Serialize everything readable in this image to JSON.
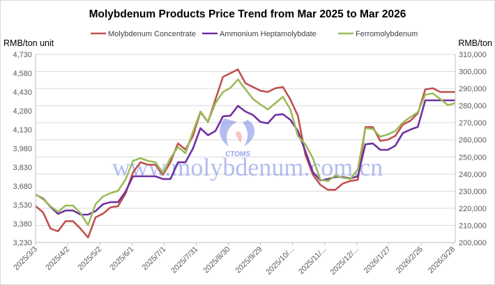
{
  "chart_data": {
    "type": "line",
    "title": "Molybdenum Products Price Trend from Mar 2025 to Mar 2026",
    "ylabel_left": "RMB/ton unit",
    "ylabel_right": "RMB/ton",
    "ylim_left": [
      3230,
      4730
    ],
    "ylim_right": [
      200000,
      310000
    ],
    "yticks_left": [
      "4,730",
      "4,580",
      "4,430",
      "4,280",
      "4,130",
      "3,980",
      "3,830",
      "3,680",
      "3,530",
      "3,380",
      "3,230"
    ],
    "yticks_right": [
      "310,000",
      "300,000",
      "290,000",
      "280,000",
      "270,000",
      "260,000",
      "250,000",
      "240,000",
      "230,000",
      "220,000",
      "210,000",
      "200,000"
    ],
    "xticks": [
      "2025/3/3",
      "2025/4/2",
      "2025/5/2",
      "2025/6/1",
      "2025/7/1",
      "2025/7/31",
      "2025/8/30",
      "2025/9/29",
      "2025/10/...",
      "2025/11/...",
      "2025/12/...",
      "2026/1/27",
      "2026/2/26",
      "2026/3/28"
    ],
    "grid": true,
    "legend": "top",
    "x": [
      "2025-03-03",
      "2025-03-10",
      "2025-03-17",
      "2025-03-24",
      "2025-03-31",
      "2025-04-07",
      "2025-04-14",
      "2025-04-21",
      "2025-04-28",
      "2025-05-05",
      "2025-05-12",
      "2025-05-19",
      "2025-05-26",
      "2025-06-02",
      "2025-06-09",
      "2025-06-16",
      "2025-06-23",
      "2025-06-30",
      "2025-07-07",
      "2025-07-14",
      "2025-07-21",
      "2025-07-28",
      "2025-08-04",
      "2025-08-11",
      "2025-08-18",
      "2025-08-25",
      "2025-09-01",
      "2025-09-08",
      "2025-09-15",
      "2025-09-22",
      "2025-09-29",
      "2025-10-06",
      "2025-10-13",
      "2025-10-20",
      "2025-10-27",
      "2025-11-03",
      "2025-11-10",
      "2025-11-17",
      "2025-11-24",
      "2025-12-01",
      "2025-12-08",
      "2025-12-15",
      "2025-12-22",
      "2025-12-29",
      "2026-01-05",
      "2026-01-12",
      "2026-01-19",
      "2026-01-26",
      "2026-02-02",
      "2026-02-09",
      "2026-02-16",
      "2026-02-23",
      "2026-03-02",
      "2026-03-09",
      "2026-03-16",
      "2026-03-23",
      "2026-03-30"
    ],
    "series": [
      {
        "name": "Molybdenum Concentrate",
        "axis": "left",
        "color": "#c0504d",
        "values": [
          3520,
          3470,
          3340,
          3320,
          3400,
          3400,
          3340,
          3270,
          3430,
          3460,
          3510,
          3520,
          3620,
          3790,
          3870,
          3850,
          3850,
          3770,
          3870,
          4020,
          3970,
          4080,
          4270,
          4190,
          4370,
          4550,
          4580,
          4610,
          4500,
          4470,
          4440,
          4430,
          4460,
          4470,
          4370,
          4240,
          3930,
          3770,
          3690,
          3650,
          3650,
          3700,
          3720,
          3730,
          4150,
          4150,
          4040,
          4050,
          4080,
          4170,
          4200,
          4260,
          4450,
          4460,
          4430,
          4430,
          4430
        ]
      },
      {
        "name": "Ammonium Heptamolybdate",
        "axis": "right",
        "color": "#7030a0",
        "values": [
          228000,
          225700,
          220800,
          216700,
          218700,
          218700,
          216300,
          216300,
          218300,
          222400,
          223600,
          223600,
          229700,
          238700,
          238700,
          238700,
          238700,
          237100,
          237100,
          246900,
          246900,
          255000,
          266800,
          262700,
          265200,
          273700,
          274200,
          279900,
          276600,
          274600,
          270500,
          269700,
          274600,
          275000,
          271700,
          265200,
          253400,
          241200,
          236300,
          237100,
          238300,
          238300,
          237500,
          238700,
          257400,
          257900,
          254200,
          254200,
          256600,
          264000,
          266000,
          267600,
          283100,
          283100,
          283100,
          283100,
          283100
        ]
      },
      {
        "name": "Ferromolybdenum",
        "axis": "right",
        "color": "#9bbb59",
        "values": [
          228100,
          225300,
          221200,
          217900,
          221600,
          221600,
          217100,
          210200,
          222400,
          226900,
          228900,
          230200,
          236700,
          247700,
          249300,
          247700,
          246900,
          240700,
          249300,
          255800,
          252200,
          264800,
          276600,
          270500,
          281500,
          288000,
          290400,
          295300,
          289600,
          283900,
          280700,
          277800,
          281500,
          285200,
          277800,
          262300,
          257400,
          249300,
          236700,
          235900,
          239100,
          237900,
          237100,
          242800,
          266800,
          266400,
          261900,
          263200,
          265200,
          270100,
          273300,
          276200,
          286400,
          287200,
          283900,
          280300,
          281500
        ]
      }
    ]
  },
  "watermark": {
    "url": "www.molybdenum.com.cn",
    "logo": "CTOMS"
  }
}
